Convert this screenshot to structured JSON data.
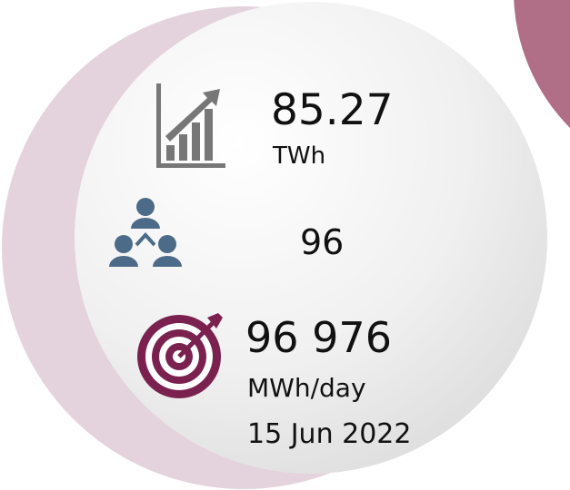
{
  "kpis": [
    {
      "value": "85.27",
      "unit": "TWh"
    },
    {
      "value": "96"
    },
    {
      "value": "96 976",
      "unit": "MWh/day",
      "date": "15 Jun 2022"
    }
  ]
}
